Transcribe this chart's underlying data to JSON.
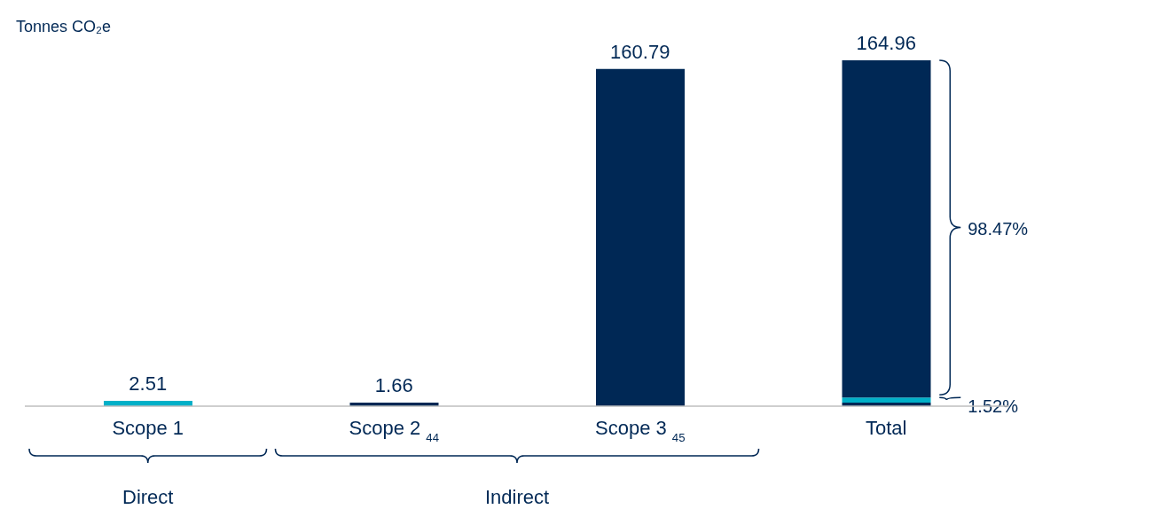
{
  "chart_data": {
    "type": "bar",
    "stacked": true,
    "ylabel": "Tonnes CO₂e",
    "categories": [
      "Scope 1",
      "Scope 2 $_{44}$",
      "Scope 3 $_{45}$",
      "Total"
    ],
    "series": [
      {
        "color": "#002855",
        "values": [
          null,
          1.66,
          null,
          1.66
        ],
        "value_labels": [
          null,
          "1.66",
          null,
          null
        ]
      },
      {
        "color": "#00b0c8",
        "values": [
          2.51,
          null,
          null,
          2.51
        ],
        "value_labels": [
          "2.51",
          null,
          null,
          null
        ]
      },
      {
        "color": "#002855",
        "values": [
          null,
          null,
          160.79,
          160.79
        ],
        "value_labels": [
          null,
          null,
          "160.79",
          null
        ]
      }
    ],
    "totals": [
      null,
      null,
      null,
      "164.96"
    ],
    "annotations": [
      "98.47%",
      "1.52%",
      "Direct",
      "Indirect"
    ],
    "grid": false,
    "legend": false
  }
}
